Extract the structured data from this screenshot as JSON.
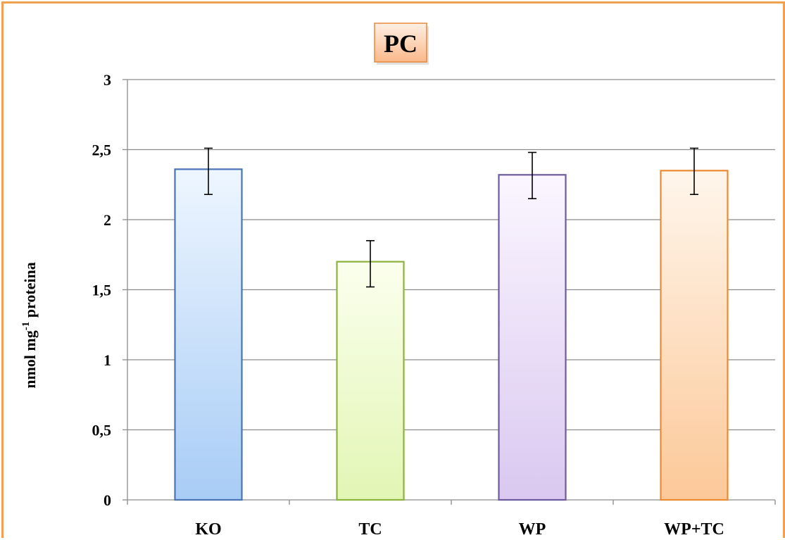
{
  "chart_data": {
    "type": "bar",
    "title": "PC",
    "ylabel": {
      "prefix": "nmol mg",
      "superscript": "-1",
      "suffix": " proteina"
    },
    "xlabel": "",
    "categories": [
      "KO",
      "TC",
      "WP",
      "WP+TC"
    ],
    "values": [
      2.36,
      1.7,
      2.32,
      2.35
    ],
    "error_low": [
      2.18,
      1.52,
      2.15,
      2.18
    ],
    "error_high": [
      2.51,
      1.85,
      2.48,
      2.51
    ],
    "ylim": [
      0,
      3
    ],
    "yticks": [
      0,
      0.5,
      1,
      1.5,
      2,
      2.5,
      3
    ],
    "ytick_labels": [
      "0",
      "0,5",
      "1",
      "1,5",
      "2",
      "2,5",
      "3"
    ],
    "grid": true,
    "legend": "none",
    "colors": {
      "bars": [
        {
          "top": "#eef6ff",
          "bottom": "#a8ccf6",
          "stroke": "#4a74b4"
        },
        {
          "top": "#fbffee",
          "bottom": "#e2f6b4",
          "stroke": "#8cb43c"
        },
        {
          "top": "#fbf6ff",
          "bottom": "#dac8f0",
          "stroke": "#6e5a9e"
        },
        {
          "top": "#fff6ec",
          "bottom": "#fcc898",
          "stroke": "#ec8a32"
        }
      ],
      "title_box_top": "#fff0e4",
      "title_box_bottom": "#fbb98a",
      "title_box_stroke": "#e8883c",
      "grid": "#8c8c8c",
      "frame": "#f0a050"
    }
  }
}
